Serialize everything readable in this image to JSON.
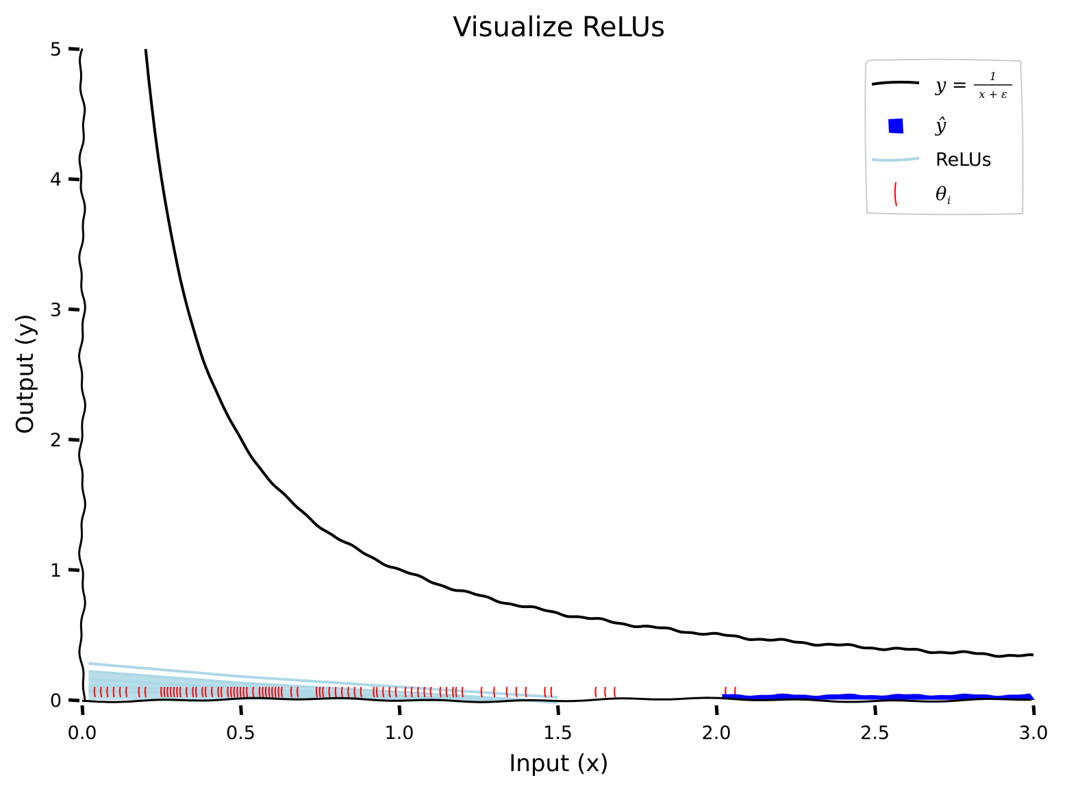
{
  "chart_data": {
    "type": "line",
    "title": "Visualize ReLUs",
    "xlabel": "Input (x)",
    "ylabel": "Output (y)",
    "xlim": [
      0,
      3
    ],
    "ylim": [
      0,
      5
    ],
    "xticks": [
      0.0,
      0.5,
      1.0,
      1.5,
      2.0,
      2.5,
      3.0
    ],
    "xtick_labels": [
      "0.0",
      "0.5",
      "1.0",
      "1.5",
      "2.0",
      "2.5",
      "3.0"
    ],
    "yticks": [
      0,
      1,
      2,
      3,
      4,
      5
    ],
    "ytick_labels": [
      "0",
      "1",
      "2",
      "3",
      "4",
      "5"
    ],
    "grid": false,
    "legend_position": "top-right",
    "legend": [
      {
        "key": "target",
        "label_prefix": "y = ",
        "frac_num": "1",
        "frac_den": "x + ε",
        "style": "line",
        "color": "#000000"
      },
      {
        "key": "yhat",
        "label": "ŷ",
        "style": "square-marker",
        "color": "#0000ff"
      },
      {
        "key": "relus",
        "label": "ReLUs",
        "style": "line",
        "color": "#add8e6"
      },
      {
        "key": "theta",
        "label": "θ",
        "subscript": "i",
        "style": "vline-marker",
        "color": "#ff0000"
      }
    ],
    "target_curve": {
      "function": "1/(x+eps)",
      "eps": 0.0,
      "x_min": 0.2,
      "x_max": 3.0
    },
    "relu_lines": [
      {
        "x": [
          0.02,
          0.5,
          1.0,
          1.5
        ],
        "y": [
          0.28,
          0.18,
          0.1,
          0.02
        ]
      },
      {
        "x": [
          0.02,
          0.5,
          1.0,
          1.4
        ],
        "y": [
          0.22,
          0.13,
          0.06,
          0.0
        ]
      },
      {
        "x": [
          0.02,
          0.5,
          1.0,
          1.35
        ],
        "y": [
          0.16,
          0.09,
          0.03,
          0.0
        ]
      },
      {
        "x": [
          0.02,
          0.5,
          1.0,
          1.3
        ],
        "y": [
          0.11,
          0.06,
          0.01,
          0.0
        ]
      },
      {
        "x": [
          0.02,
          0.5,
          1.0,
          1.3
        ],
        "y": [
          0.07,
          0.04,
          0.0,
          0.0
        ]
      }
    ],
    "yhat": {
      "x": [
        2.02,
        2.5,
        3.0
      ],
      "y": [
        0.03,
        0.035,
        0.035
      ]
    },
    "theta_positions": [
      0.04,
      0.06,
      0.08,
      0.1,
      0.12,
      0.14,
      0.18,
      0.2,
      0.25,
      0.26,
      0.27,
      0.28,
      0.29,
      0.3,
      0.31,
      0.33,
      0.35,
      0.36,
      0.38,
      0.39,
      0.41,
      0.43,
      0.44,
      0.46,
      0.47,
      0.48,
      0.49,
      0.5,
      0.51,
      0.52,
      0.54,
      0.56,
      0.57,
      0.58,
      0.59,
      0.6,
      0.61,
      0.62,
      0.63,
      0.66,
      0.68,
      0.74,
      0.75,
      0.76,
      0.78,
      0.8,
      0.82,
      0.84,
      0.86,
      0.88,
      0.92,
      0.93,
      0.95,
      0.97,
      0.99,
      1.02,
      1.04,
      1.06,
      1.08,
      1.1,
      1.13,
      1.15,
      1.17,
      1.18,
      1.2,
      1.26,
      1.3,
      1.34,
      1.37,
      1.4,
      1.46,
      1.48,
      1.62,
      1.65,
      1.68,
      2.03,
      2.06
    ]
  }
}
